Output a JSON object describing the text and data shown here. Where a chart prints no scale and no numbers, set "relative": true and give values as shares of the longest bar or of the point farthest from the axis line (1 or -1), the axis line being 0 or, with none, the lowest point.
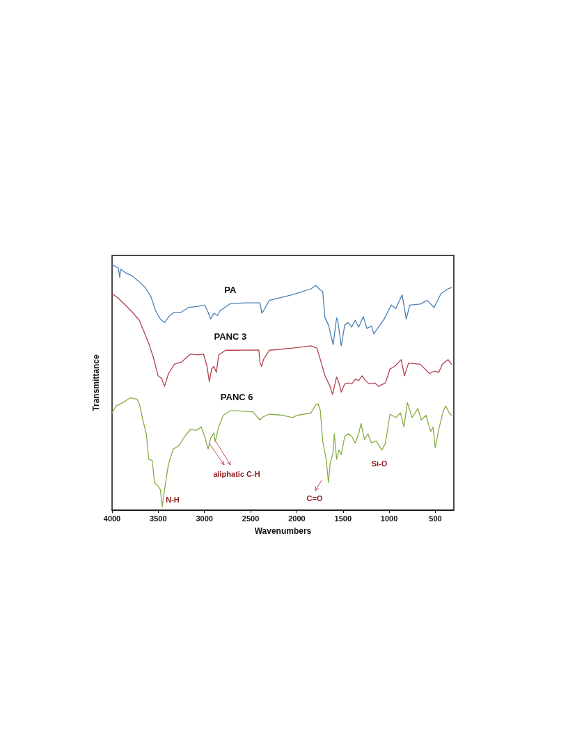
{
  "chart_data": {
    "type": "line",
    "relative": true,
    "xlabel": "Wavenumbers",
    "ylabel": "Transmittance",
    "xlim": [
      4000,
      300
    ],
    "xticks": [
      4000,
      3500,
      3000,
      2500,
      2000,
      1500,
      1000,
      500
    ],
    "grid": false,
    "legend": false,
    "marker": "none",
    "line_style": "solid",
    "annotations": [
      "N-H",
      "aliphatic C-H",
      "C=O",
      "Si-O"
    ],
    "series": [
      {
        "name": "PA",
        "color": "#4a7fb5",
        "x": [
          4000,
          3932,
          3917,
          3907,
          3856,
          3780,
          3705,
          3641,
          3578,
          3528,
          3477,
          3432,
          3376,
          3326,
          3250,
          3174,
          3073,
          2998,
          2960,
          2934,
          2897,
          2859,
          2833,
          2720,
          2550,
          2399,
          2379,
          2361,
          2298,
          2047,
          1846,
          1795,
          1745,
          1720,
          1695,
          1657,
          1607,
          1569,
          1557,
          1519,
          1481,
          1444,
          1406,
          1368,
          1330,
          1280,
          1242,
          1192,
          1167,
          1117,
          1054,
          978,
          928,
          860,
          815,
          777,
          664,
          589,
          514,
          438,
          363,
          325
        ],
        "values": [
          1.0,
          0.986,
          0.948,
          0.981,
          0.967,
          0.953,
          0.929,
          0.906,
          0.868,
          0.811,
          0.778,
          0.764,
          0.792,
          0.806,
          0.806,
          0.825,
          0.83,
          0.835,
          0.806,
          0.778,
          0.802,
          0.792,
          0.811,
          0.841,
          0.844,
          0.844,
          0.802,
          0.811,
          0.854,
          0.877,
          0.901,
          0.915,
          0.896,
          0.891,
          0.783,
          0.754,
          0.674,
          0.783,
          0.773,
          0.669,
          0.754,
          0.764,
          0.745,
          0.773,
          0.745,
          0.788,
          0.74,
          0.75,
          0.717,
          0.745,
          0.778,
          0.835,
          0.821,
          0.877,
          0.778,
          0.835,
          0.839,
          0.854,
          0.825,
          0.882,
          0.901,
          0.906
        ]
      },
      {
        "name": "PANC 3",
        "color": "#b0414a",
        "x": [
          4000,
          3932,
          3856,
          3780,
          3705,
          3654,
          3603,
          3553,
          3502,
          3464,
          3432,
          3389,
          3326,
          3250,
          3149,
          3073,
          3010,
          2972,
          2947,
          2922,
          2897,
          2871,
          2846,
          2771,
          2720,
          2411,
          2399,
          2381,
          2361,
          2298,
          2047,
          1846,
          1783,
          1745,
          1695,
          1645,
          1614,
          1569,
          1544,
          1519,
          1481,
          1443,
          1406,
          1368,
          1330,
          1293,
          1268,
          1217,
          1154,
          1117,
          1041,
          991,
          941,
          870,
          835,
          790,
          664,
          614,
          564,
          514,
          463,
          425,
          363,
          325
        ],
        "values": [
          0.882,
          0.863,
          0.835,
          0.806,
          0.773,
          0.726,
          0.679,
          0.622,
          0.547,
          0.537,
          0.504,
          0.556,
          0.594,
          0.603,
          0.636,
          0.632,
          0.636,
          0.585,
          0.523,
          0.575,
          0.585,
          0.561,
          0.632,
          0.651,
          0.651,
          0.652,
          0.603,
          0.585,
          0.613,
          0.651,
          0.66,
          0.669,
          0.66,
          0.613,
          0.547,
          0.509,
          0.471,
          0.542,
          0.518,
          0.481,
          0.514,
          0.518,
          0.514,
          0.533,
          0.528,
          0.547,
          0.533,
          0.514,
          0.518,
          0.504,
          0.518,
          0.575,
          0.585,
          0.613,
          0.547,
          0.599,
          0.594,
          0.575,
          0.556,
          0.566,
          0.561,
          0.594,
          0.613,
          0.594
        ]
      },
      {
        "name": "PANC 6",
        "color": "#86ad45",
        "x": [
          4000,
          3957,
          3882,
          3806,
          3730,
          3705,
          3667,
          3629,
          3603,
          3565,
          3540,
          3502,
          3477,
          3457,
          3432,
          3389,
          3338,
          3275,
          3212,
          3149,
          3086,
          3035,
          2998,
          2960,
          2934,
          2897,
          2884,
          2846,
          2796,
          2720,
          2650,
          2474,
          2399,
          2361,
          2298,
          2147,
          2047,
          1997,
          1846,
          1795,
          1770,
          1745,
          1720,
          1682,
          1657,
          1640,
          1607,
          1594,
          1569,
          1544,
          1519,
          1481,
          1443,
          1406,
          1368,
          1330,
          1305,
          1268,
          1230,
          1192,
          1142,
          1079,
          1041,
          991,
          928,
          878,
          840,
          803,
          752,
          689,
          652,
          601,
          551,
          526,
          501,
          463,
          413,
          388,
          350,
          325
        ],
        "values": [
          0.396,
          0.424,
          0.438,
          0.457,
          0.452,
          0.433,
          0.367,
          0.311,
          0.207,
          0.202,
          0.112,
          0.098,
          0.084,
          0.013,
          0.084,
          0.188,
          0.249,
          0.263,
          0.301,
          0.33,
          0.325,
          0.339,
          0.301,
          0.249,
          0.292,
          0.315,
          0.278,
          0.339,
          0.386,
          0.405,
          0.405,
          0.4,
          0.367,
          0.381,
          0.391,
          0.386,
          0.377,
          0.386,
          0.396,
          0.429,
          0.433,
          0.405,
          0.282,
          0.207,
          0.112,
          0.188,
          0.235,
          0.311,
          0.207,
          0.245,
          0.226,
          0.301,
          0.311,
          0.301,
          0.273,
          0.311,
          0.353,
          0.287,
          0.311,
          0.273,
          0.282,
          0.245,
          0.273,
          0.391,
          0.377,
          0.396,
          0.339,
          0.438,
          0.377,
          0.414,
          0.367,
          0.386,
          0.32,
          0.339,
          0.254,
          0.33,
          0.405,
          0.424,
          0.396,
          0.386
        ]
      }
    ]
  }
}
